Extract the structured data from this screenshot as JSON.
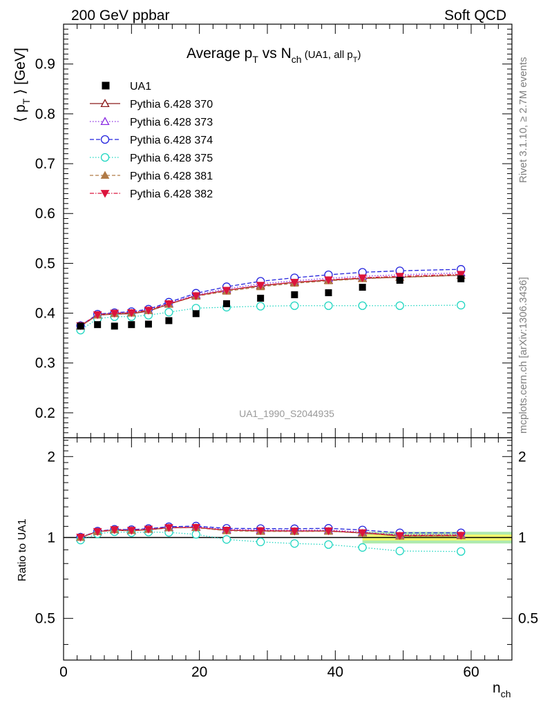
{
  "header": {
    "left": "200 GeV ppbar",
    "right": "Soft QCD"
  },
  "side": {
    "rivet": "Rivet 3.1.10, ≥ 2.7M events",
    "mcplots": "mcplots.cern.ch [arXiv:1306.3436]"
  },
  "watermark": "UA1_1990_S2044935",
  "chart_data": {
    "type": "line",
    "title": {
      "main": "Average p",
      "main_sub": "T",
      "mid": " vs N",
      "mid_sub": "ch",
      "qual": " (UA1, all p",
      "qual_sub": "T",
      "qual_end": ")"
    },
    "ylabel_main": {
      "pre": "⟨ p",
      "sub": "T",
      "post": " ⟩ [GeV]"
    },
    "ylabel_ratio": "Ratio to UA1",
    "xlabel": {
      "main": "n",
      "sub": "ch"
    },
    "xlim": [
      0,
      66
    ],
    "ylim_main": [
      0.15,
      0.98
    ],
    "ylim_ratio": [
      0.35,
      2.35
    ],
    "ratio_log": true,
    "x_ticks": [
      0,
      20,
      40,
      60
    ],
    "x_tick_labels": [
      "0",
      "20",
      "40",
      "60"
    ],
    "y_ticks_main": [
      0.2,
      0.3,
      0.4,
      0.5,
      0.6,
      0.7,
      0.8,
      0.9
    ],
    "y_tick_labels_main": [
      "0.2",
      "0.3",
      "0.4",
      "0.5",
      "0.6",
      "0.7",
      "0.8",
      "0.9"
    ],
    "y_ticks_ratio": [
      0.5,
      1,
      2
    ],
    "y_tick_labels_ratio": [
      "0.5",
      "1",
      "2"
    ],
    "legend_position": "top-left",
    "data": {
      "name": "UA1",
      "x": [
        2.5,
        5,
        7.5,
        10,
        12.5,
        15.5,
        19.5,
        24,
        29,
        34,
        39,
        44,
        49.5,
        58.5
      ],
      "y": [
        0.374,
        0.377,
        0.374,
        0.377,
        0.378,
        0.385,
        0.399,
        0.419,
        0.43,
        0.437,
        0.441,
        0.452,
        0.466,
        0.469
      ]
    },
    "series": [
      {
        "name": "Pythia 6.428 370",
        "color": "#8b1a1a",
        "dash": "",
        "marker": "triangle-open",
        "y": [
          0.374,
          0.396,
          0.398,
          0.399,
          0.404,
          0.418,
          0.435,
          0.446,
          0.455,
          0.462,
          0.466,
          0.47,
          0.472,
          0.476
        ]
      },
      {
        "name": "Pythia 6.428 373",
        "color": "#8a2be2",
        "dash": "1.5,2.5",
        "marker": "triangle-open",
        "y": [
          0.375,
          0.397,
          0.4,
          0.401,
          0.406,
          0.42,
          0.437,
          0.449,
          0.459,
          0.465,
          0.47,
          0.474,
          0.477,
          0.481
        ]
      },
      {
        "name": "Pythia 6.428 374",
        "color": "#2222dd",
        "dash": "6,3",
        "marker": "circle-open",
        "y": [
          0.375,
          0.398,
          0.401,
          0.403,
          0.408,
          0.422,
          0.44,
          0.453,
          0.464,
          0.471,
          0.477,
          0.482,
          0.485,
          0.488
        ]
      },
      {
        "name": "Pythia 6.428 375",
        "color": "#1fd6c1",
        "dash": "1.5,2.5",
        "marker": "circle-open",
        "y": [
          0.366,
          0.389,
          0.393,
          0.393,
          0.396,
          0.402,
          0.41,
          0.412,
          0.414,
          0.415,
          0.415,
          0.415,
          0.415,
          0.416
        ]
      },
      {
        "name": "Pythia 6.428 381",
        "color": "#b07a46",
        "dash": "5,3",
        "marker": "triangle-filled",
        "y": [
          0.374,
          0.396,
          0.399,
          0.4,
          0.405,
          0.418,
          0.434,
          0.444,
          0.453,
          0.46,
          0.465,
          0.469,
          0.472,
          0.476
        ]
      },
      {
        "name": "Pythia 6.428 382",
        "color": "#dc143c",
        "dash": "6,2,1.5,2",
        "marker": "triangle-down-filled",
        "y": [
          0.375,
          0.397,
          0.4,
          0.401,
          0.406,
          0.419,
          0.435,
          0.446,
          0.456,
          0.462,
          0.467,
          0.471,
          0.474,
          0.478
        ]
      }
    ],
    "uncertainty_band": {
      "x_from": 44,
      "x_to": 66,
      "inner_color": "#ffff66",
      "outer_color": "#a6e8a6"
    }
  }
}
